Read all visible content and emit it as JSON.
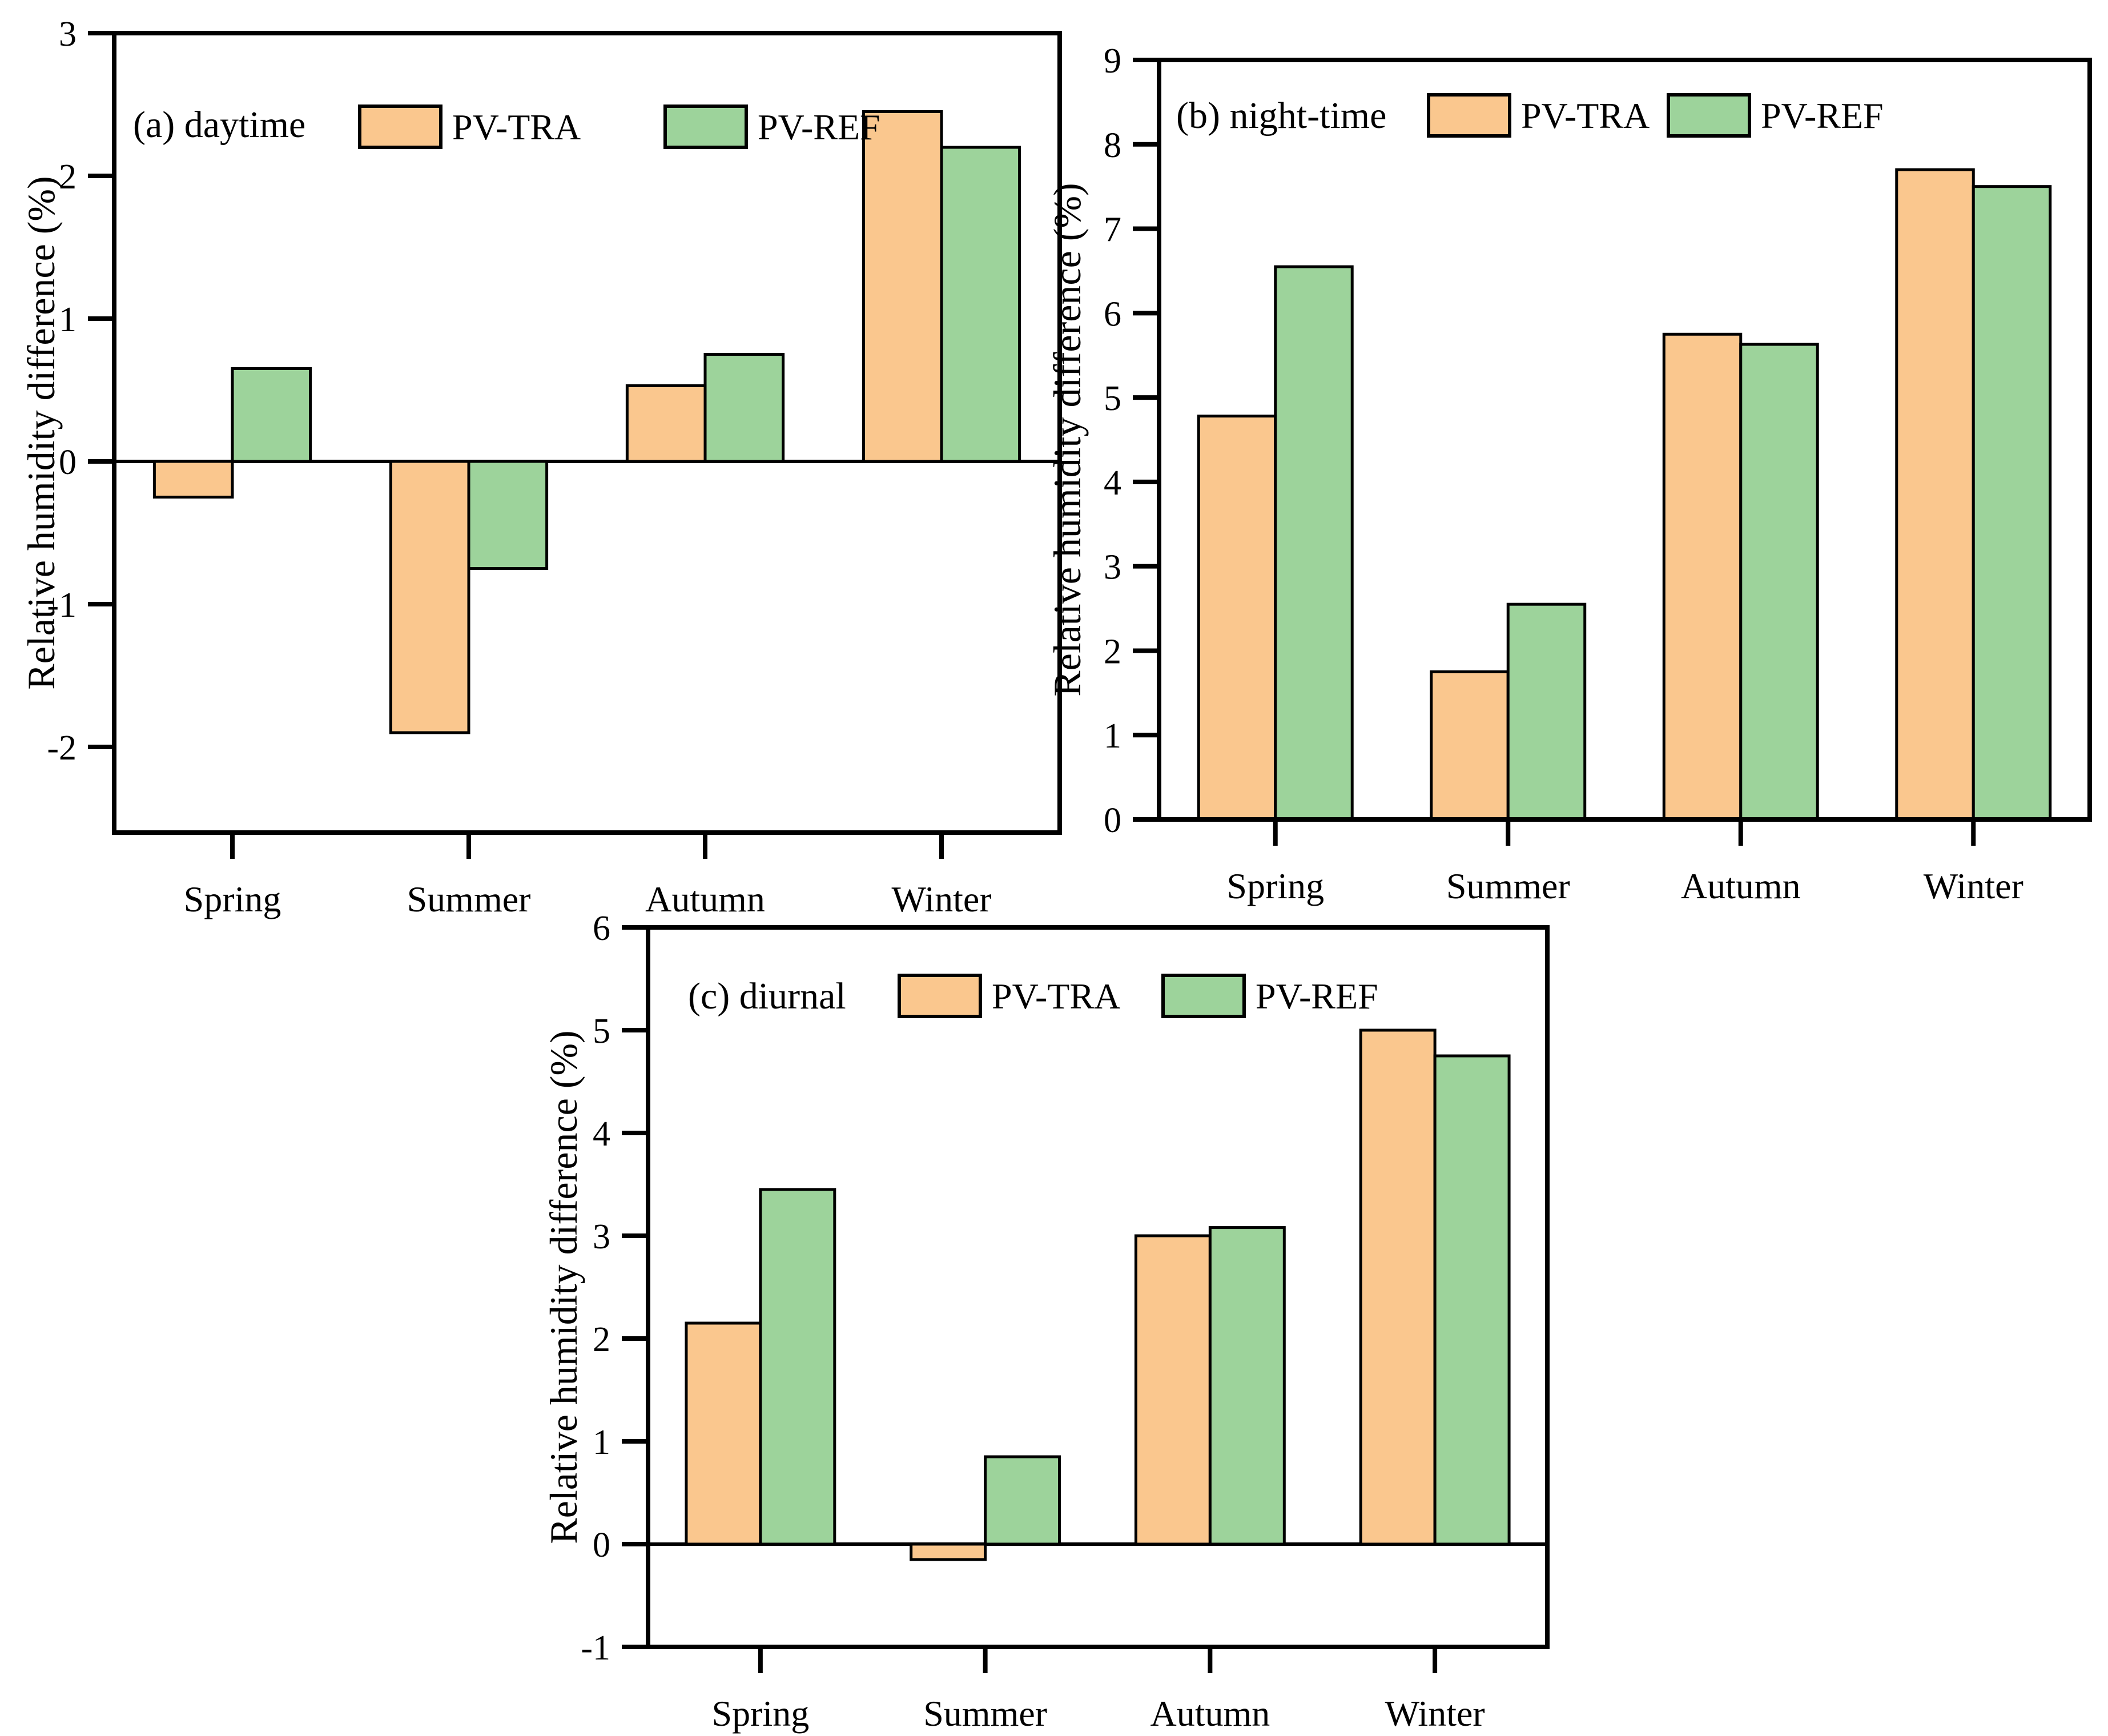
{
  "page": {
    "background": "#ffffff"
  },
  "series_colors": {
    "pv_tra": "#FAC78E",
    "pv_ref": "#9DD39B"
  },
  "bar_border_color": "#000000",
  "chart_data": [
    {
      "id": "a",
      "type": "bar",
      "title": "(a) daytime",
      "ylabel": "Relative humidity difference (%)",
      "xlabel": "",
      "categories": [
        "Spring",
        "Summer",
        "Autumn",
        "Winter"
      ],
      "series": [
        {
          "name": "PV-TRA",
          "color": "#FAC78E",
          "values": [
            -0.25,
            -1.9,
            0.53,
            2.45
          ]
        },
        {
          "name": "PV-REF",
          "color": "#9DD39B",
          "values": [
            0.65,
            -0.75,
            0.75,
            2.2
          ]
        }
      ],
      "ylim": [
        -2.6,
        3
      ],
      "yticks": [
        3,
        2,
        1,
        0,
        -1,
        -2
      ],
      "grid": false,
      "legend_position": "top-inside"
    },
    {
      "id": "b",
      "type": "bar",
      "title": "(b) night-time",
      "ylabel": "Relative humidity difference (%)",
      "xlabel": "",
      "categories": [
        "Spring",
        "Summer",
        "Autumn",
        "Winter"
      ],
      "series": [
        {
          "name": "PV-TRA",
          "color": "#FAC78E",
          "values": [
            4.78,
            1.75,
            5.75,
            7.7
          ]
        },
        {
          "name": "PV-REF",
          "color": "#9DD39B",
          "values": [
            6.55,
            2.55,
            5.63,
            7.5
          ]
        }
      ],
      "ylim": [
        0,
        9
      ],
      "yticks": [
        9,
        8,
        7,
        6,
        5,
        4,
        3,
        2,
        1,
        0
      ],
      "grid": false,
      "legend_position": "top-inside"
    },
    {
      "id": "c",
      "type": "bar",
      "title": "(c) diurnal",
      "ylabel": "Relative humidity difference (%)",
      "xlabel": "",
      "categories": [
        "Spring",
        "Summer",
        "Autumn",
        "Winter"
      ],
      "series": [
        {
          "name": "PV-TRA",
          "color": "#FAC78E",
          "values": [
            2.15,
            -0.15,
            3.0,
            5.0
          ]
        },
        {
          "name": "PV-REF",
          "color": "#9DD39B",
          "values": [
            3.45,
            0.85,
            3.08,
            4.75
          ]
        }
      ],
      "ylim": [
        -1,
        6
      ],
      "yticks": [
        6,
        5,
        4,
        3,
        2,
        1,
        0,
        -1
      ],
      "grid": false,
      "legend_position": "top-inside"
    }
  ]
}
